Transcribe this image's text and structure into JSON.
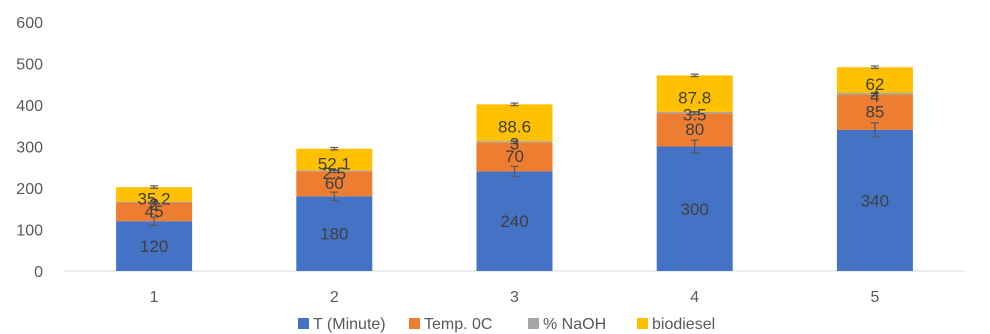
{
  "chart_data": {
    "type": "bar",
    "stacked": true,
    "title": "",
    "xlabel": "",
    "ylabel": "",
    "categories": [
      "1",
      "2",
      "3",
      "4",
      "5"
    ],
    "ylim": [
      0,
      600
    ],
    "yticks": [
      "0",
      "100",
      "200",
      "300",
      "400",
      "500",
      "600"
    ],
    "grid": false,
    "legend": "bottom",
    "series": [
      {
        "name": "T (Minute)",
        "color": "#4472C4",
        "values": [
          120,
          180,
          240,
          300,
          340
        ],
        "labels": [
          "120",
          "180",
          "240",
          "300",
          "340"
        ],
        "error": [
          10,
          10,
          12,
          15,
          17
        ]
      },
      {
        "name": "Temp. 0C",
        "color": "#ED7D31",
        "values": [
          45,
          60,
          70,
          80,
          85
        ],
        "labels": [
          "45",
          "60",
          "70",
          "80",
          "85"
        ],
        "error": [
          3,
          3,
          3,
          3,
          3
        ]
      },
      {
        "name": "% NaOH",
        "color": "#A5A5A5",
        "values": [
          2,
          2.5,
          3,
          3.5,
          4
        ],
        "labels": [
          "2",
          "2.5",
          "3",
          "3.5",
          "4"
        ],
        "error": [
          0.2,
          0.2,
          0.2,
          0.2,
          0.2
        ]
      },
      {
        "name": "biodiesel",
        "color": "#FFC000",
        "values": [
          35.2,
          52.1,
          88.6,
          87.8,
          62
        ],
        "labels": [
          "35.2",
          "52.1",
          "88.6",
          "87.8",
          "62"
        ],
        "error": [
          3,
          3,
          3,
          3,
          3
        ]
      }
    ]
  }
}
